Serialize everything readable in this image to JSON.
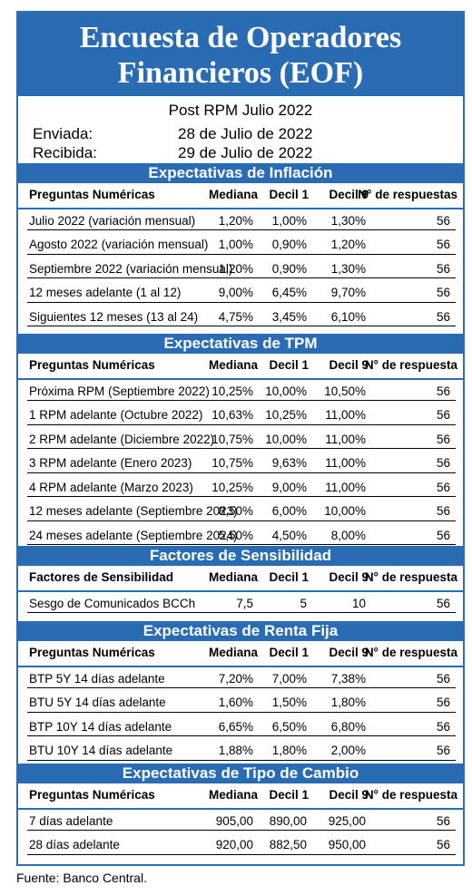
{
  "title_line1": "Encuesta de Operadores",
  "title_line2": "Financieros (EOF)",
  "subtitle": "Post RPM Julio 2022",
  "sent_label": "Enviada:",
  "sent_date": "28 de Julio de 2022",
  "received_label": "Recibida:",
  "received_date": "29 de Julio de 2022",
  "sections": [
    {
      "heading": "Expectativas de Inflación",
      "columns": [
        "Preguntas Numéricas",
        "Mediana",
        "Decil 1",
        "Decil 9",
        "N° de respuestas"
      ],
      "rows": [
        [
          "Julio 2022 (variación mensual)",
          "1,20%",
          "1,00%",
          "1,30%",
          "56"
        ],
        [
          "Agosto 2022 (variación mensual)",
          "1,00%",
          "0,90%",
          "1,20%",
          "56"
        ],
        [
          "Septiembre 2022 (variación mensual)",
          "1,20%",
          "0,90%",
          "1,30%",
          "56"
        ],
        [
          "12 meses adelante (1 al 12)",
          "9,00%",
          "6,45%",
          "9,70%",
          "56"
        ],
        [
          "Siguientes 12 meses (13 al 24)",
          "4,75%",
          "3,45%",
          "6,10%",
          "56"
        ]
      ]
    },
    {
      "heading": "Expectativas de TPM",
      "columns": [
        "Preguntas Numéricas",
        "Mediana",
        "Decil 1",
        "Decil 9",
        "N° de respuesta"
      ],
      "rows": [
        [
          "Próxima RPM (Septiembre 2022)",
          "10,25%",
          "10,00%",
          "10,50%",
          "56"
        ],
        [
          "1 RPM adelante (Octubre 2022)",
          "10,63%",
          "10,25%",
          "11,00%",
          "56"
        ],
        [
          "2 RPM adelante (Diciembre 2022)",
          "10,75%",
          "10,00%",
          "11,00%",
          "56"
        ],
        [
          "3 RPM adelante (Enero 2023)",
          "10,75%",
          "9,63%",
          "11,00%",
          "56"
        ],
        [
          "4 RPM adelante (Marzo 2023)",
          "10,25%",
          "9,00%",
          "11,00%",
          "56"
        ],
        [
          "12 meses adelante (Septiembre 2023)",
          "8,50%",
          "6,00%",
          "10,00%",
          "56"
        ],
        [
          "24 meses adelante (Septiembre 2024)",
          "5,50%",
          "4,50%",
          "8,00%",
          "56"
        ]
      ]
    },
    {
      "heading": "Factores de Sensibilidad",
      "columns": [
        "Factores de Sensibilidad",
        "Mediana",
        "Decil 1",
        "Decil 9",
        "N° de respuesta"
      ],
      "rows": [
        [
          "Sesgo de Comunicados BCCh",
          "7,5",
          "5",
          "10",
          "56"
        ]
      ]
    },
    {
      "heading": "Expectativas  de Renta Fija",
      "columns": [
        "Preguntas Numéricas",
        "Mediana",
        "Decil 1",
        "Decil 9",
        "N° de respuesta"
      ],
      "rows": [
        [
          "BTP 5Y 14 días adelante",
          "7,20%",
          "7,00%",
          "7,38%",
          "56"
        ],
        [
          "BTU 5Y 14 días adelante",
          "1,60%",
          "1,50%",
          "1,80%",
          "56"
        ],
        [
          "BTP 10Y 14 días adelante",
          "6,65%",
          "6,50%",
          "6,80%",
          "56"
        ],
        [
          "BTU 10Y 14 días adelante",
          "1,88%",
          "1,80%",
          "2,00%",
          "56"
        ]
      ]
    },
    {
      "heading": "Expectativas  de Tipo de Cambio",
      "columns": [
        "Preguntas Numéricas",
        "Mediana",
        "Decil 1",
        "Decil 9",
        "N° de respuesta"
      ],
      "rows": [
        [
          "7 días adelante",
          "905,00",
          "890,00",
          "925,00",
          "56"
        ],
        [
          "28 días adelante",
          "920,00",
          "882,50",
          "950,00",
          "56"
        ]
      ]
    }
  ],
  "footer": "Fuente: Banco Central."
}
